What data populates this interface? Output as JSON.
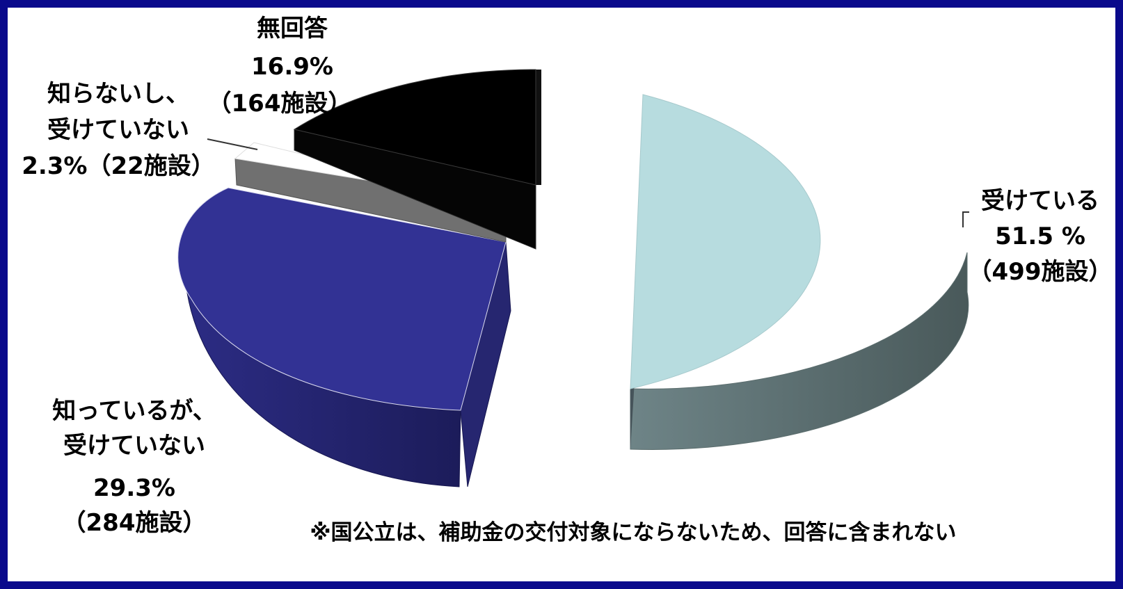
{
  "chart_data": {
    "type": "pie",
    "title": "",
    "series": [
      {
        "slices": [
          {
            "name": "受けている",
            "percent": 51.5,
            "percent_label": "51.5 %",
            "count_label": "（499施設）",
            "color": "#b7dcdf",
            "side_color": "#505f5f"
          },
          {
            "name": "知っているが、受けていない",
            "percent": 29.3,
            "percent_label": "29.3%",
            "count_label": "（284施設）",
            "color": "#323294",
            "side_color": "#22226a"
          },
          {
            "name": "知らないし、受けていない",
            "percent": 2.3,
            "percent_label": "2.3%（22施設）",
            "count_label": "",
            "color": "#ffffff",
            "side_color": "#707070"
          },
          {
            "name": "無回答",
            "percent": 16.9,
            "percent_label": "16.9%",
            "count_label": "（164施設）",
            "color": "#000000",
            "side_color": "#050505"
          }
        ]
      }
    ],
    "labels": {
      "received": {
        "line1": "受けている",
        "line2": "51.5 %",
        "line3": "（499施設）"
      },
      "aware_not_received": {
        "line1": "知っているが、",
        "line2": "受けていない",
        "line3": "29.3%",
        "line4": "（284施設）"
      },
      "unaware_not_received": {
        "line1": "知らないし、",
        "line2": "受けていない",
        "line3": "2.3%（22施設）"
      },
      "no_answer": {
        "line1": "無回答",
        "line2": "16.9%",
        "line3": "（164施設）"
      }
    },
    "note": "※国公立は、補助金の交付対象にならないため、回答に含まれない",
    "frame_color": "#0a0a8c"
  }
}
